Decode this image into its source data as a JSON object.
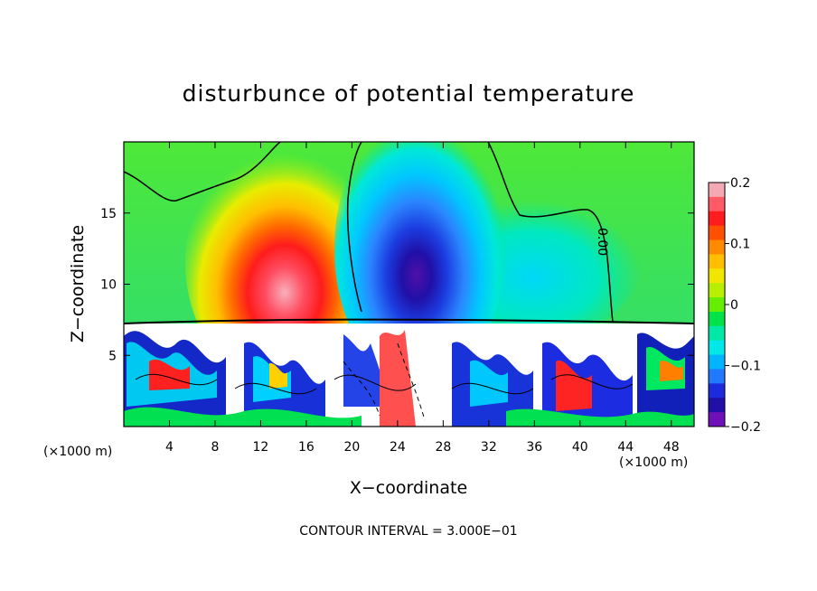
{
  "chart_data": {
    "type": "heatmap",
    "title": "disturbunce of potential temperature",
    "xlabel": "X−coordinate",
    "ylabel": "Z−coordinate",
    "x_unit_left": "(×1000 m)",
    "x_unit_right": "(×1000 m)",
    "xlim": [
      0,
      50
    ],
    "ylim": [
      0,
      20
    ],
    "x_ticks": [
      "4",
      "8",
      "12",
      "16",
      "20",
      "24",
      "28",
      "32",
      "36",
      "40",
      "44",
      "48"
    ],
    "y_ticks": [
      "5",
      "10",
      "15"
    ],
    "colorbar": {
      "range": [
        -0.2,
        0.2
      ],
      "tick_labels": [
        "0.2",
        "0.1",
        "0",
        "−0.1",
        "−0.2"
      ],
      "colors": [
        "#f3a8b4",
        "#ff5a66",
        "#ff1c1c",
        "#ff5000",
        "#ff8a00",
        "#ffbe00",
        "#f0e600",
        "#b8ee00",
        "#66ee00",
        "#00e24a",
        "#00e8a8",
        "#00e8e8",
        "#00b4ff",
        "#2278ff",
        "#1c2cdc",
        "#2010a8",
        "#7010b8"
      ]
    },
    "features": [
      {
        "kind": "warm anomaly",
        "x": 14,
        "z": 11,
        "value": 0.18
      },
      {
        "kind": "cold anomaly",
        "x": 26,
        "z": 11,
        "value": -0.2
      }
    ],
    "zero_contour_label": "0.00",
    "note": "CONTOUR INTERVAL = 3.000E−01"
  }
}
